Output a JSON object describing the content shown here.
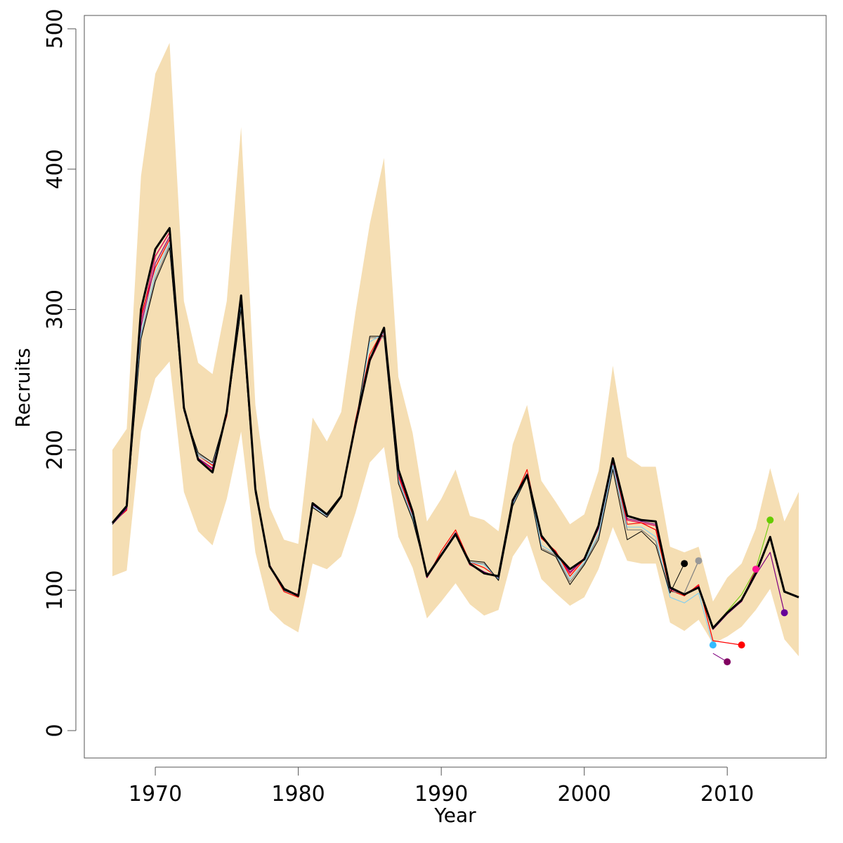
{
  "chart_data": {
    "type": "line",
    "title": "",
    "xlabel": "Year",
    "ylabel": "Recruits",
    "xlim": [
      1967,
      2015
    ],
    "ylim": [
      0,
      500
    ],
    "x_ticks": [
      1970,
      1980,
      1990,
      2000,
      2010
    ],
    "y_ticks": [
      0,
      100,
      200,
      300,
      400,
      500
    ],
    "grid": false,
    "legend": "none",
    "band_color": "#f5deb3",
    "band": {
      "x": [
        1967,
        1968,
        1969,
        1970,
        1971,
        1972,
        1973,
        1974,
        1975,
        1976,
        1977,
        1978,
        1979,
        1980,
        1981,
        1982,
        1983,
        1984,
        1985,
        1986,
        1987,
        1988,
        1989,
        1990,
        1991,
        1992,
        1993,
        1994,
        1995,
        1996,
        1997,
        1998,
        1999,
        2000,
        2001,
        2002,
        2003,
        2004,
        2005,
        2006,
        2007,
        2008,
        2009,
        2010,
        2011,
        2012,
        2013,
        2014,
        2015
      ],
      "upper": [
        200,
        215,
        395,
        468,
        490,
        306,
        262,
        254,
        306,
        430,
        232,
        159,
        136,
        133,
        223,
        206,
        227,
        298,
        361,
        408,
        252,
        212,
        149,
        165,
        186,
        153,
        150,
        142,
        204,
        232,
        178,
        163,
        147,
        154,
        185,
        260,
        195,
        188,
        188,
        131,
        127,
        131,
        92,
        109,
        119,
        144,
        187,
        149,
        170
      ],
      "lower": [
        110,
        114,
        213,
        251,
        263,
        170,
        142,
        132,
        165,
        213,
        127,
        86,
        76,
        70,
        119,
        115,
        124,
        155,
        191,
        202,
        138,
        116,
        80,
        92,
        105,
        90,
        82,
        86,
        124,
        139,
        108,
        98,
        89,
        95,
        115,
        145,
        121,
        119,
        119,
        77,
        71,
        79,
        62,
        67,
        74,
        86,
        101,
        65,
        53
      ]
    },
    "series": [
      {
        "name": "",
        "color": "#000000",
        "width": 3,
        "x": [
          1967,
          1968,
          1969,
          1970,
          1971,
          1972,
          1973,
          1974,
          1975,
          1976,
          1977,
          1978,
          1979,
          1980,
          1981,
          1982,
          1983,
          1984,
          1985,
          1986,
          1987,
          1988,
          1989,
          1990,
          1991,
          1992,
          1993,
          1994,
          1995,
          1996,
          1997,
          1998,
          1999,
          2000,
          2001,
          2002,
          2003,
          2004,
          2005,
          2006,
          2007,
          2008,
          2009,
          2010,
          2011,
          2012,
          2013,
          2014,
          2015
        ],
        "y": [
          148,
          160,
          300,
          343,
          358,
          230,
          193,
          184,
          227,
          310,
          172,
          117,
          101,
          96,
          162,
          154,
          167,
          218,
          264,
          287,
          186,
          156,
          110,
          125,
          140,
          119,
          112,
          110,
          164,
          182,
          139,
          126,
          115,
          122,
          146,
          194,
          153,
          150,
          149,
          102,
          97,
          102,
          73,
          84,
          93,
          112,
          138,
          99,
          95
        ]
      },
      {
        "name": "",
        "color": "#e0115f",
        "width": 1.5,
        "x": [
          1967,
          1968,
          1969,
          1970,
          1971,
          1972,
          1973,
          1974,
          1975,
          1976,
          1977,
          1978,
          1979,
          1980,
          1981,
          1982,
          1983,
          1984,
          1985,
          1986,
          1987,
          1988,
          1989,
          1990,
          1991,
          1992,
          1993,
          1994,
          1995,
          1996,
          1997,
          1998,
          1999,
          2000,
          2001,
          2002,
          2003,
          2004,
          2005,
          2006,
          2007,
          2008,
          2009,
          2010,
          2011,
          2012
        ],
        "y": [
          147,
          158,
          292,
          338,
          355,
          229,
          194,
          186,
          226,
          309,
          171,
          118,
          100,
          97,
          161,
          153,
          167,
          216,
          263,
          284,
          183,
          153,
          109,
          125,
          141,
          118,
          113,
          109,
          162,
          183,
          138,
          127,
          112,
          123,
          144,
          191,
          150,
          148,
          146,
          101,
          97,
          103,
          73,
          84,
          92,
          115
        ]
      },
      {
        "name": "",
        "color": "#ff0000",
        "width": 1.2,
        "x": [
          1967,
          1968,
          1969,
          1970,
          1971,
          1972,
          1973,
          1974,
          1975,
          1976,
          1977,
          1978,
          1979,
          1980,
          1981,
          1982,
          1983,
          1984,
          1985,
          1986,
          1987,
          1988,
          1989,
          1990,
          1991,
          1992,
          1993,
          1994,
          1995,
          1996,
          1997,
          1998,
          1999,
          2000,
          2001,
          2002,
          2003,
          2004,
          2005,
          2006,
          2007,
          2008,
          2009,
          2011
        ],
        "y": [
          148,
          157,
          296,
          330,
          350,
          228,
          196,
          189,
          224,
          306,
          170,
          117,
          99,
          95,
          161,
          154,
          166,
          221,
          268,
          287,
          181,
          154,
          109,
          128,
          143,
          120,
          116,
          109,
          163,
          186,
          137,
          128,
          110,
          122,
          144,
          193,
          147,
          148,
          143,
          100,
          96,
          104,
          64,
          61
        ]
      },
      {
        "name": "",
        "color": "#800080",
        "width": 1.2,
        "x": [
          1967,
          1968,
          1969,
          1970,
          1971,
          1972,
          1973,
          1974,
          1975,
          1976,
          1977,
          1978,
          1979,
          1980,
          1981,
          1982,
          1983,
          1984,
          1985,
          1986,
          1987,
          1988,
          1989,
          1990,
          1991,
          1992,
          1993,
          1994,
          1995,
          1996,
          1997,
          1998,
          1999,
          2000,
          2001,
          2002,
          2003,
          2004,
          2005,
          2006,
          2007,
          2008,
          2009,
          2010,
          2011,
          2012,
          2013,
          2014
        ],
        "y": [
          147,
          158,
          288,
          333,
          352,
          228,
          194,
          187,
          225,
          308,
          171,
          118,
          100,
          96,
          161,
          153,
          167,
          219,
          265,
          286,
          184,
          155,
          109,
          126,
          141,
          119,
          113,
          109,
          162,
          183,
          138,
          127,
          113,
          122,
          144,
          192,
          151,
          149,
          147,
          101,
          97,
          102,
          72,
          83,
          92,
          111,
          127,
          84
        ]
      },
      {
        "name": "",
        "color": "#808080",
        "width": 1.2,
        "x": [
          1967,
          1968,
          1969,
          1970,
          1971,
          1972,
          1973,
          1974,
          1975,
          1976,
          1977,
          1978,
          1979,
          1980,
          1981,
          1982,
          1983,
          1984,
          1985,
          1986,
          1987,
          1988,
          1989,
          1990,
          1991,
          1992,
          1993,
          1994,
          1995,
          1996,
          1997,
          1998,
          1999,
          2000,
          2001,
          2002,
          2003,
          2004,
          2005,
          2006,
          2007,
          2008
        ],
        "y": [
          147,
          160,
          281,
          322,
          346,
          228,
          197,
          191,
          226,
          303,
          169,
          117,
          100,
          96,
          159,
          152,
          166,
          217,
          280,
          280,
          178,
          151,
          111,
          126,
          140,
          120,
          119,
          107,
          161,
          182,
          130,
          125,
          106,
          119,
          138,
          188,
          143,
          143,
          135,
          99,
          98,
          121
        ]
      },
      {
        "name": "",
        "color": "#87ceeb",
        "width": 1.2,
        "x": [
          1967,
          1968,
          1969,
          1970,
          1971,
          1972,
          1973,
          1974,
          1975,
          1976,
          1977,
          1978,
          1979,
          1980,
          1981,
          1982,
          1983,
          1984,
          1985,
          1986,
          1987,
          1988,
          1989,
          1990,
          1991,
          1992,
          1993,
          1994,
          1995,
          1996,
          1997,
          1998,
          1999,
          2000,
          2001,
          2002,
          2003,
          2004,
          2005,
          2006,
          2007,
          2008,
          2009
        ],
        "y": [
          147,
          159,
          283,
          326,
          348,
          228,
          196,
          190,
          226,
          304,
          170,
          117,
          100,
          96,
          160,
          153,
          166,
          217,
          277,
          283,
          179,
          152,
          110,
          126,
          140,
          120,
          118,
          108,
          161,
          182,
          132,
          126,
          108,
          120,
          140,
          189,
          145,
          145,
          138,
          95,
          91,
          98,
          61
        ]
      },
      {
        "name": "",
        "color": "#000000",
        "width": 1,
        "x": [
          1967,
          1968,
          1969,
          1970,
          1971,
          1972,
          1973,
          1974,
          1975,
          1976,
          1977,
          1978,
          1979,
          1980,
          1981,
          1982,
          1983,
          1984,
          1985,
          1986,
          1987,
          1988,
          1989,
          1990,
          1991,
          1992,
          1993,
          1994,
          1995,
          1996,
          1997,
          1998,
          1999,
          2000,
          2001,
          2002,
          2003,
          2004,
          2005,
          2006,
          2007
        ],
        "y": [
          147,
          159,
          279,
          320,
          344,
          228,
          198,
          191,
          226,
          300,
          169,
          117,
          100,
          96,
          159,
          152,
          166,
          217,
          281,
          281,
          176,
          150,
          111,
          126,
          139,
          121,
          120,
          107,
          160,
          181,
          129,
          124,
          104,
          118,
          136,
          186,
          136,
          142,
          132,
          98,
          119
        ]
      },
      {
        "name": "",
        "color": "#66cc00",
        "width": 1,
        "x": [
          2009,
          2010,
          2011,
          2012,
          2013
        ],
        "y": [
          73,
          85,
          97,
          115,
          150
        ]
      },
      {
        "name": "",
        "color": "#800080",
        "width": 1,
        "x": [
          2009,
          2010
        ],
        "y": [
          55,
          49
        ]
      }
    ],
    "endpoints": [
      {
        "x": 2007,
        "y": 119,
        "color": "#000000"
      },
      {
        "x": 2008,
        "y": 121,
        "color": "#999999"
      },
      {
        "x": 2009,
        "y": 61,
        "color": "#33bbff"
      },
      {
        "x": 2010,
        "y": 49,
        "color": "#800060"
      },
      {
        "x": 2011,
        "y": 61,
        "color": "#ff0000"
      },
      {
        "x": 2012,
        "y": 115,
        "color": "#ff1493"
      },
      {
        "x": 2013,
        "y": 150,
        "color": "#66cc00"
      },
      {
        "x": 2014,
        "y": 84,
        "color": "#660099"
      }
    ]
  }
}
